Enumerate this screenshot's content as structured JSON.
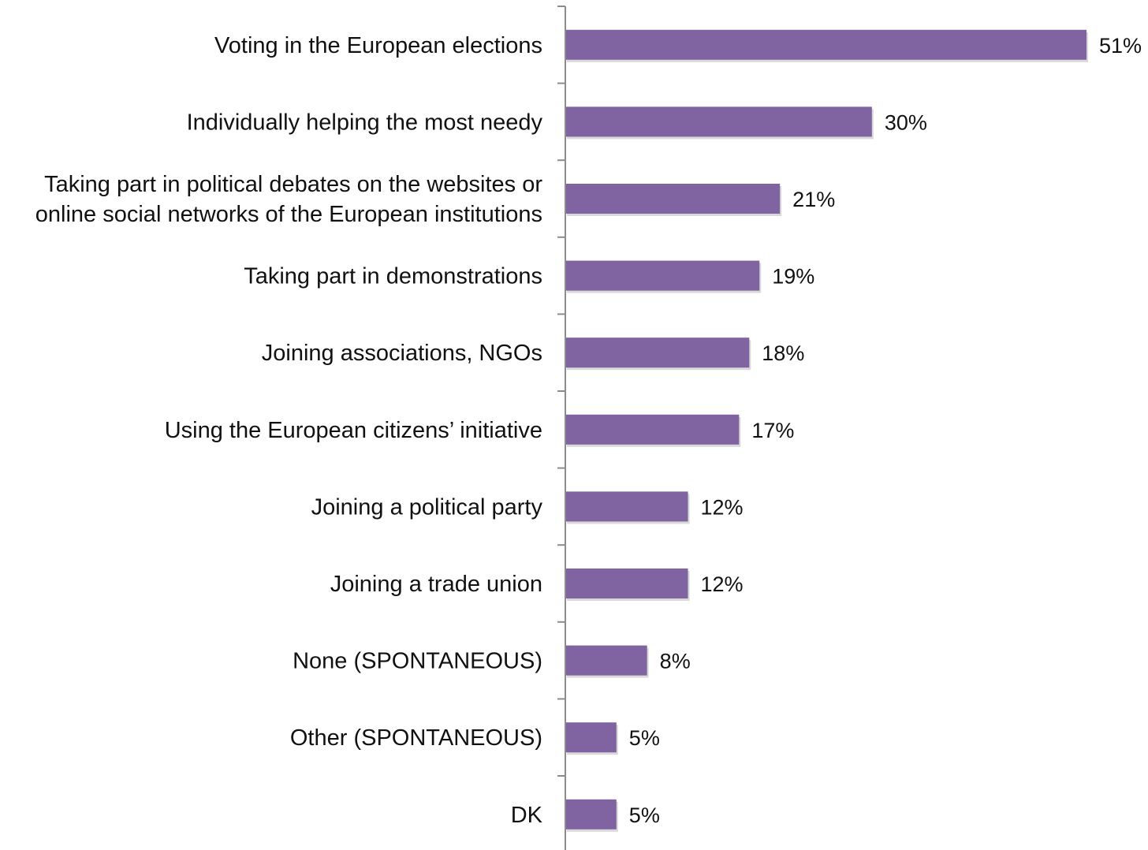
{
  "chart_data": {
    "type": "bar",
    "orientation": "horizontal",
    "categories": [
      "Voting in the European elections",
      "Individually helping the most needy",
      "Taking part in political debates on the websites or online social networks of the European institutions",
      "Taking part in demonstrations",
      "Joining associations, NGOs",
      "Using the European citizens’ initiative",
      "Joining a political party",
      "Joining a trade union",
      "None (SPONTANEOUS)",
      "Other (SPONTANEOUS)",
      "DK"
    ],
    "category_lines": [
      [
        "Voting in the European elections"
      ],
      [
        "Individually helping the most needy"
      ],
      [
        "Taking part in political debates on the websites or",
        "online social networks of the European institutions"
      ],
      [
        "Taking part in demonstrations"
      ],
      [
        "Joining associations, NGOs"
      ],
      [
        "Using the European citizens’ initiative"
      ],
      [
        "Joining a political party"
      ],
      [
        "Joining a trade union"
      ],
      [
        "None (SPONTANEOUS)"
      ],
      [
        "Other (SPONTANEOUS)"
      ],
      [
        "DK"
      ]
    ],
    "values": [
      51,
      30,
      21,
      19,
      18,
      17,
      12,
      12,
      8,
      5,
      5
    ],
    "value_labels": [
      "51%",
      "30%",
      "21%",
      "19%",
      "18%",
      "17%",
      "12%",
      "12%",
      "8%",
      "5%",
      "5%"
    ],
    "unit": "%",
    "xlim": [
      0,
      51
    ],
    "grid": false,
    "legend": "none",
    "colors": {
      "bar": "#8064a2",
      "bar_shadow": "#d9d9d9",
      "axis": "#8c8c8c",
      "text": "#111111"
    }
  }
}
